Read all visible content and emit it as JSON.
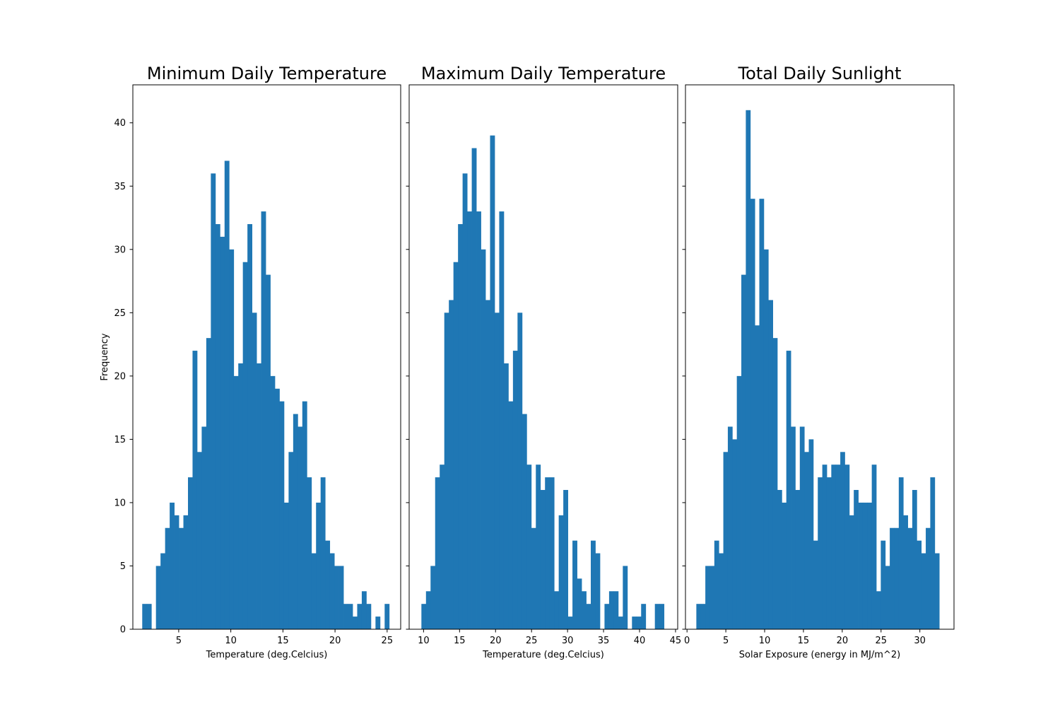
{
  "chart_data": [
    {
      "type": "bar",
      "title": "Minimum Daily Temperature",
      "xlabel": "Temperature (deg.Celcius)",
      "ylabel": "Frequency",
      "xlim": [
        0.6,
        26.3
      ],
      "ylim": [
        0,
        43
      ],
      "xticks": [
        5,
        10,
        15,
        20,
        25
      ],
      "yticks": [
        0,
        5,
        10,
        15,
        20,
        25,
        30,
        35,
        40
      ],
      "bin_start": 1.5,
      "bin_end": 25.2,
      "counts": [
        2,
        2,
        0,
        5,
        6,
        8,
        10,
        9,
        8,
        9,
        12,
        22,
        14,
        16,
        23,
        36,
        32,
        31,
        37,
        30,
        20,
        21,
        29,
        32,
        25,
        21,
        33,
        28,
        20,
        19,
        18,
        10,
        14,
        17,
        16,
        18,
        12,
        6,
        10,
        12,
        7,
        6,
        5,
        5,
        2,
        2,
        1,
        2,
        3,
        2,
        0,
        1,
        0,
        2
      ],
      "grid": false,
      "color": "#1f77b4"
    },
    {
      "type": "bar",
      "title": "Maximum Daily Temperature",
      "xlabel": "Temperature (deg.Celcius)",
      "ylabel": "",
      "xlim": [
        8.0,
        45.3
      ],
      "ylim": [
        0,
        43
      ],
      "xticks": [
        10,
        15,
        20,
        25,
        30,
        35,
        40,
        45
      ],
      "yticks": [
        0,
        5,
        10,
        15,
        20,
        25,
        30,
        35,
        40
      ],
      "bin_start": 9.7,
      "bin_end": 43.4,
      "counts": [
        2,
        3,
        5,
        12,
        13,
        25,
        26,
        29,
        32,
        36,
        33,
        38,
        33,
        30,
        26,
        39,
        25,
        33,
        21,
        18,
        22,
        25,
        17,
        13,
        8,
        13,
        11,
        12,
        12,
        3,
        9,
        11,
        1,
        7,
        4,
        3,
        2,
        7,
        6,
        0,
        2,
        3,
        3,
        1,
        5,
        0,
        1,
        1,
        2,
        0,
        0,
        2,
        2
      ],
      "grid": false,
      "color": "#1f77b4"
    },
    {
      "type": "bar",
      "title": "Total Daily Sunlight",
      "xlabel": "Solar Exposure (energy in MJ/m^2)",
      "ylabel": "",
      "xlim": [
        -0.2,
        34.4
      ],
      "ylim": [
        0,
        43
      ],
      "xticks": [
        0,
        5,
        10,
        15,
        20,
        25,
        30
      ],
      "yticks": [
        0,
        5,
        10,
        15,
        20,
        25,
        30,
        35,
        40
      ],
      "bin_start": 1.2,
      "bin_end": 32.5,
      "counts": [
        2,
        2,
        5,
        5,
        7,
        6,
        14,
        16,
        15,
        20,
        28,
        41,
        34,
        24,
        34,
        30,
        26,
        23,
        11,
        10,
        22,
        16,
        11,
        16,
        14,
        15,
        7,
        12,
        13,
        12,
        13,
        13,
        14,
        13,
        9,
        11,
        10,
        10,
        10,
        13,
        3,
        7,
        5,
        8,
        8,
        12,
        9,
        8,
        11,
        7,
        6,
        8,
        12,
        6
      ],
      "grid": false,
      "color": "#1f77b4"
    }
  ]
}
